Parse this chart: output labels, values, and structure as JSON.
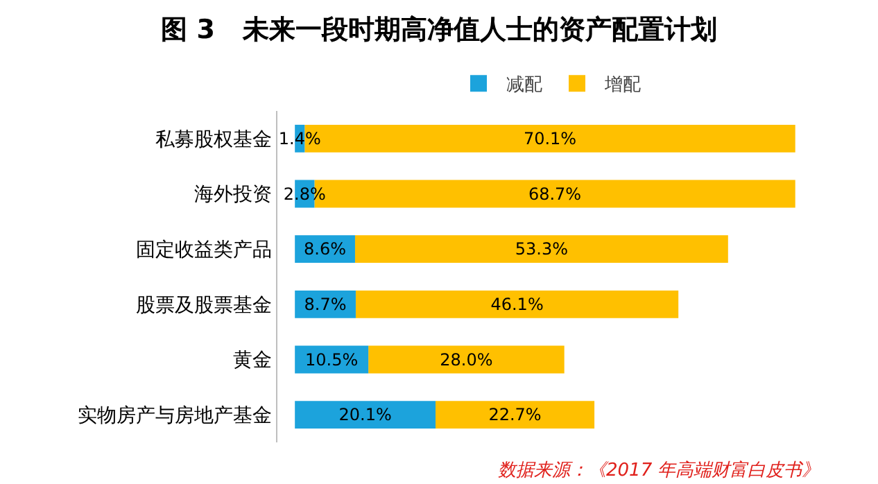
{
  "chart_data": {
    "type": "bar",
    "orientation": "horizontal",
    "stacked": true,
    "title": "图 3   未来一段时期高净值人士的资产配置计划",
    "categories": [
      "私募股权基金",
      "海外投资",
      "固定收益类产品",
      "股票及股票基金",
      "黄金",
      "实物房产与房地产基金"
    ],
    "series": [
      {
        "name": "减配",
        "color": "#1ca3dc",
        "values": [
          1.4,
          2.8,
          8.6,
          8.7,
          10.5,
          20.1
        ],
        "value_labels": [
          "1.4%",
          "2.8%",
          "8.6%",
          "8.7%",
          "10.5%",
          "20.1%"
        ]
      },
      {
        "name": "增配",
        "color": "#ffc000",
        "values": [
          70.1,
          68.7,
          53.3,
          46.1,
          28.0,
          22.7
        ],
        "value_labels": [
          "70.1%",
          "68.7%",
          "53.3%",
          "46.1%",
          "28.0%",
          "22.7%"
        ]
      }
    ],
    "legend": "top",
    "grid": false,
    "tick_labels": "y",
    "annotations": [
      "数据来源：《2017 年高端财富白皮书》"
    ]
  }
}
